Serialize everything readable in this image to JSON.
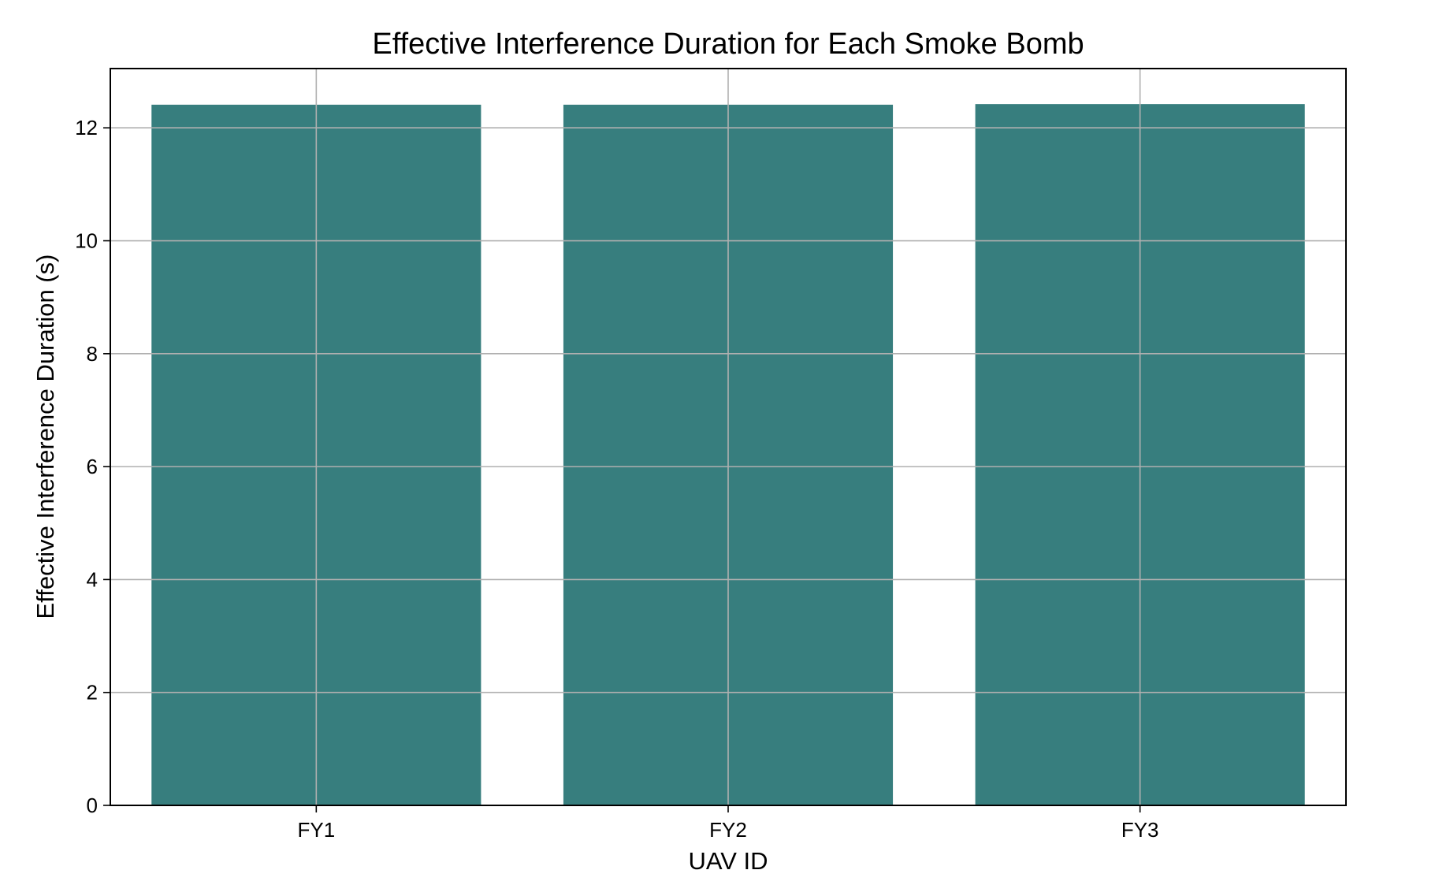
{
  "chart_data": {
    "type": "bar",
    "title": "Effective Interference Duration for Each Smoke Bomb",
    "xlabel": "UAV ID",
    "ylabel": "Effective Interference Duration (s)",
    "categories": [
      "FY1",
      "FY2",
      "FY3"
    ],
    "values": [
      12.41,
      12.41,
      12.42
    ],
    "ylim": [
      0,
      13.05
    ],
    "yticks": [
      0,
      2,
      4,
      6,
      8,
      10,
      12
    ],
    "grid": true,
    "bar_color": "#377e7e"
  }
}
